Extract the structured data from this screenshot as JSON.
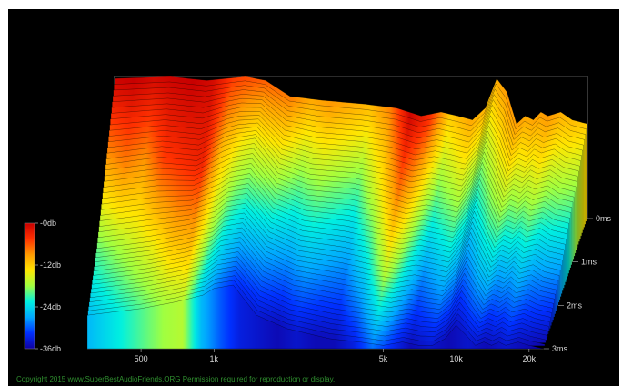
{
  "chart_data": {
    "type": "waterfall",
    "title": "",
    "xlabel": "",
    "ylabel": "",
    "x_axis": {
      "scale": "log",
      "range": [
        300,
        23000
      ],
      "ticks": [
        "500",
        "1k",
        "5k",
        "10k",
        "20k"
      ]
    },
    "z_axis": {
      "scale": "linear",
      "ticks": [
        "0ms",
        "1ms",
        "2ms",
        "3ms"
      ],
      "range_ms": [
        0,
        3
      ]
    },
    "colorbar": {
      "ticks": [
        "-0db",
        "-12db",
        "-24db",
        "-36db"
      ],
      "range_db": [
        -36,
        0
      ],
      "colors": [
        "#c80000",
        "#ff3000",
        "#ff9a00",
        "#ffe600",
        "#a0ff40",
        "#00f0e0",
        "#00a8ff",
        "#0030ff",
        "#1000a0"
      ]
    },
    "series": [
      {
        "x": [
          300,
          500,
          700,
          900,
          1000,
          1200,
          1500,
          2000,
          3000,
          4000,
          5000,
          6000,
          7000,
          8000,
          9000,
          10000,
          11000,
          12000,
          13000,
          14000,
          15000,
          16000,
          18000,
          20000,
          23000
        ],
        "y": [
          -0.5,
          0,
          -1,
          -0.3,
          0,
          -1,
          -5,
          -6,
          -7,
          -8,
          -10,
          -9,
          -10,
          -11,
          -8,
          -0.5,
          -4,
          -12,
          -10,
          -11,
          -9,
          -10,
          -9,
          -11,
          -12
        ]
      },
      {
        "x": [
          300,
          500,
          700,
          900,
          1000,
          1200,
          1500,
          2000,
          3000,
          4000,
          5000,
          6000,
          7000,
          8000,
          9000,
          10000,
          11000,
          12000,
          13000,
          14000,
          15000,
          16000,
          18000,
          20000,
          23000
        ],
        "y": [
          -10,
          -8,
          -9,
          -5,
          -4,
          -3,
          -11,
          -14,
          -15,
          -17,
          -19,
          -18,
          -19,
          -20,
          -15,
          -8,
          -14,
          -20,
          -18,
          -19,
          -17,
          -18,
          -17,
          -19,
          -20
        ]
      },
      {
        "x": [
          300,
          500,
          700,
          900,
          1000,
          1200,
          1500,
          2000,
          3000,
          4000,
          5000,
          6000,
          7000,
          8000,
          9000,
          10000,
          11000,
          12000,
          13000,
          14000,
          15000,
          16000,
          18000,
          20000,
          23000
        ],
        "y": [
          -20,
          -18,
          -16,
          -14,
          -11,
          -10,
          -18,
          -22,
          -24,
          -26,
          -27,
          -26,
          -27,
          -28,
          -24,
          -17,
          -23,
          -28,
          -26,
          -27,
          -25,
          -27,
          -26,
          -28,
          -29
        ]
      },
      {
        "x": [
          300,
          500,
          700,
          900,
          1000,
          1200,
          1500,
          2000,
          3000,
          4000,
          5000,
          6000,
          7000,
          8000,
          9000,
          10000,
          11000,
          12000,
          13000,
          14000,
          15000,
          16000,
          18000,
          20000,
          23000
        ],
        "y": [
          -26,
          -24,
          -22,
          -20,
          -18,
          -17,
          -26,
          -30,
          -33,
          -34,
          -35,
          -34,
          -35,
          -35,
          -33,
          -29,
          -32,
          -35,
          -34,
          -35,
          -34,
          -35,
          -34,
          -35,
          -36
        ]
      }
    ],
    "copyright": "Copyright 2015 www.SuperBestAudioFriends.ORG Permission required for reproduction or display."
  }
}
